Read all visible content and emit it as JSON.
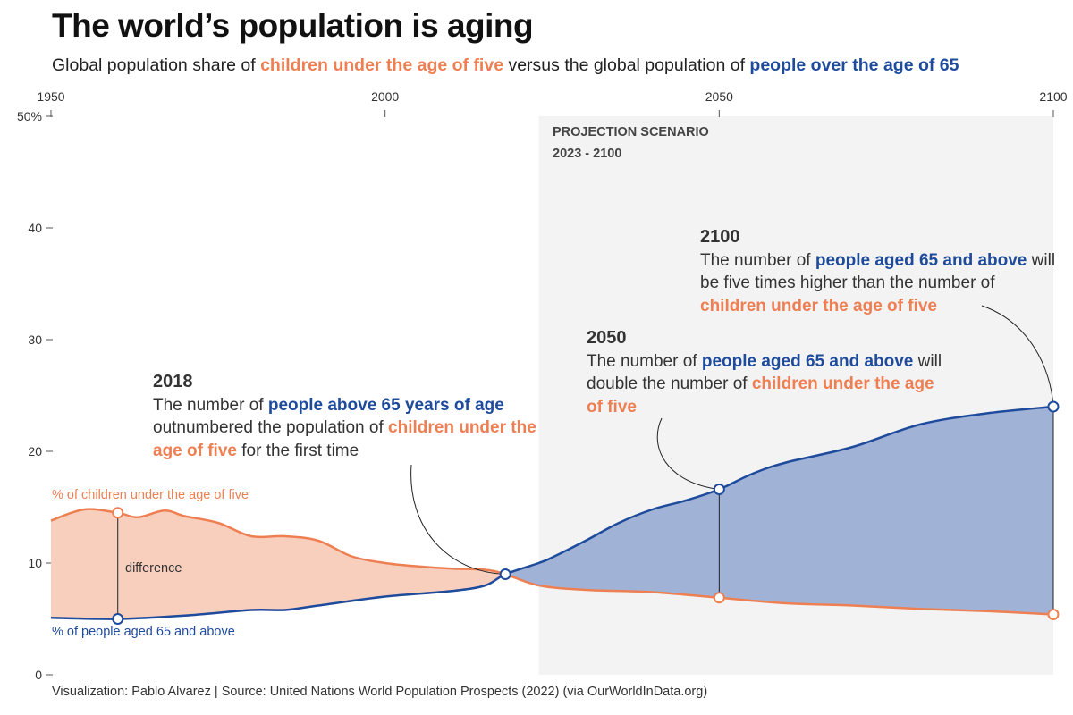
{
  "title": "The world’s population is aging",
  "subtitle": {
    "p1": "Global population share of ",
    "p2": "children under the age of five",
    "p3": " versus the global population of ",
    "p4": "people over the age of 65"
  },
  "projection": {
    "label": "PROJECTION SCENARIO",
    "range": "2023 - 2100"
  },
  "annotations": {
    "a2018": {
      "year": "2018",
      "t1": "The number of ",
      "t2": "people above 65 years of age",
      "t3": " outnumbered the population of ",
      "t4": "children under the age of five",
      "t5": " for the first time"
    },
    "a2050": {
      "year": "2050",
      "t1": "The number of ",
      "t2": "people aged 65 and above",
      "t3": " will double the number of ",
      "t4": "children under the age of five"
    },
    "a2100": {
      "year": "2100",
      "t1": "The number of ",
      "t2": "people aged 65 and above",
      "t3": " will be five times higher than the number of ",
      "t4": "children under the age of five"
    },
    "difference": "difference"
  },
  "source": "Visualization: Pablo Alvarez | Source: United Nations World Population Prospects (2022) (via OurWorldInDataWorldInData.org)",
  "colors": {
    "children": "#ee7f53",
    "children_fill": "#f8cfbd",
    "elderly": "#1f4b9c",
    "elderly_fill": "#a0b3d6",
    "projection_bg": "#f3f3f3"
  },
  "chart_data": {
    "type": "area",
    "title": "The world’s population is aging",
    "xlim": [
      1950,
      2100
    ],
    "ylim": [
      0,
      50
    ],
    "x_ticks": [
      "1950",
      "2000",
      "2050",
      "2100"
    ],
    "y_ticks": [
      "0",
      "10",
      "20",
      "30",
      "40",
      "50%"
    ],
    "projection_start": 2023,
    "series": [
      {
        "name": "% of children under the age of five",
        "x": [
          1950,
          1955,
          1960,
          1963,
          1967,
          1970,
          1975,
          1980,
          1985,
          1990,
          1995,
          2000,
          2005,
          2010,
          2015,
          2018,
          2023,
          2030,
          2040,
          2050,
          2060,
          2070,
          2080,
          2090,
          2100
        ],
        "y": [
          13.8,
          14.8,
          14.5,
          14.1,
          14.7,
          14.2,
          13.6,
          12.4,
          12.4,
          12.0,
          10.6,
          10.0,
          9.7,
          9.5,
          9.4,
          9.0,
          8.0,
          7.6,
          7.4,
          6.9,
          6.4,
          6.2,
          5.9,
          5.7,
          5.4
        ]
      },
      {
        "name": "% of people aged 65 and above",
        "x": [
          1950,
          1960,
          1970,
          1980,
          1985,
          1990,
          2000,
          2010,
          2015,
          2018,
          2023,
          2025,
          2030,
          2035,
          2040,
          2045,
          2050,
          2055,
          2060,
          2070,
          2080,
          2090,
          2100
        ],
        "y": [
          5.1,
          5.0,
          5.3,
          5.8,
          5.8,
          6.2,
          7.0,
          7.5,
          8.0,
          9.0,
          10.0,
          10.5,
          12.0,
          13.6,
          14.8,
          15.6,
          16.6,
          18.0,
          19.0,
          20.4,
          22.4,
          23.4,
          24.0
        ]
      }
    ],
    "markers": [
      1960,
      2018,
      2050,
      2100
    ]
  }
}
